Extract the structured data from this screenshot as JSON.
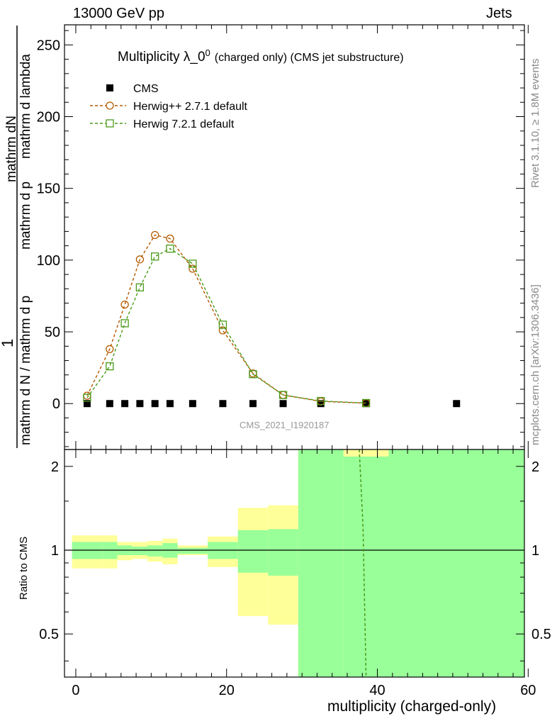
{
  "header": {
    "left_title": "13000 GeV pp",
    "right_title": "Jets"
  },
  "side": {
    "rivet": "Rivet 3.1.10, ≥ 1.8M events",
    "mcplots": "mcplots.cern.ch [arXiv:1306.3436]"
  },
  "chart_data": [
    {
      "type": "line",
      "panel": "main",
      "title": "Multiplicity λ_0",
      "title_sup": "0",
      "title_suffix": "(charged only) (CMS jet substructure)",
      "watermark": "CMS_2021_I1920187",
      "ylabel_top": "1",
      "ylabel_num": "mathrm dN",
      "ylabel_den_1": "mathrm d N / mathrm d p",
      "ylabel_den_2": "mathrm d p",
      "ylabel_den_3": "mathrm d lambda",
      "ylim": [
        -32,
        264
      ],
      "xlim": [
        -1.5,
        59.5
      ],
      "y_ticks": [
        0,
        50,
        100,
        150,
        200,
        250
      ],
      "y_tick_labels": [
        "0",
        "50",
        "100",
        "150",
        "200",
        "250"
      ],
      "legend_placement": "top-left",
      "series": [
        {
          "name": "CMS",
          "marker": "filled-square",
          "color": "#000000",
          "x": [
            1.5,
            4.5,
            6.5,
            8.5,
            10.5,
            12.5,
            15.5,
            19.5,
            23.5,
            27.5,
            32.5,
            38.5,
            50.5
          ],
          "y": [
            0,
            0,
            0,
            0,
            0,
            0,
            0,
            0,
            0,
            0,
            0,
            0,
            0
          ]
        },
        {
          "name": "Herwig++ 2.7.1 default",
          "marker": "open-circle",
          "color": "#b35a00",
          "x": [
            1.5,
            4.5,
            6.5,
            8.5,
            10.5,
            12.5,
            15.5,
            19.5,
            23.5,
            27.5,
            32.5,
            38.5
          ],
          "y": [
            5.5,
            38,
            69,
            100.5,
            117.5,
            115,
            94,
            51,
            21,
            6,
            1.5,
            0.3
          ]
        },
        {
          "name": "Herwig 7.2.1 default",
          "marker": "open-square",
          "color": "#4a9a1a",
          "x": [
            1.5,
            4.5,
            6.5,
            8.5,
            10.5,
            12.5,
            15.5,
            19.5,
            23.5,
            27.5,
            32.5,
            38.5
          ],
          "y": [
            4,
            26,
            56,
            81,
            102.5,
            108,
            97.5,
            55,
            20.5,
            6,
            1.8,
            0.4
          ]
        }
      ]
    },
    {
      "type": "area",
      "panel": "ratio",
      "ylabel": "Ratio to CMS",
      "ylim": [
        0.35,
        2.3
      ],
      "xlim": [
        -1.5,
        59.5
      ],
      "y_ticks": [
        0.5,
        1,
        2
      ],
      "y_tick_labels": [
        "0.5",
        "1",
        "2"
      ],
      "x_ticks": [
        0,
        20,
        40,
        60
      ],
      "x_tick_labels": [
        "0",
        "20",
        "40",
        "60"
      ],
      "xlabel": "multiplicity (charged-only)",
      "bands": [
        {
          "x0": -0.5,
          "x1": 3.5,
          "yellow": [
            0.86,
            1.13
          ],
          "green": [
            0.93,
            1.07
          ]
        },
        {
          "x0": 3.5,
          "x1": 5.5,
          "yellow": [
            0.86,
            1.13
          ],
          "green": [
            0.93,
            1.07
          ]
        },
        {
          "x0": 5.5,
          "x1": 7.5,
          "yellow": [
            0.92,
            1.07
          ],
          "green": [
            0.96,
            1.04
          ]
        },
        {
          "x0": 7.5,
          "x1": 9.5,
          "yellow": [
            0.93,
            1.07
          ],
          "green": [
            0.96,
            1.03
          ]
        },
        {
          "x0": 9.5,
          "x1": 11.5,
          "yellow": [
            0.91,
            1.08
          ],
          "green": [
            0.95,
            1.04
          ]
        },
        {
          "x0": 11.5,
          "x1": 13.5,
          "yellow": [
            0.89,
            1.1
          ],
          "green": [
            0.94,
            1.06
          ]
        },
        {
          "x0": 13.5,
          "x1": 17.5,
          "yellow": [
            0.96,
            1.04
          ],
          "green": [
            0.97,
            1.02
          ]
        },
        {
          "x0": 17.5,
          "x1": 21.5,
          "yellow": [
            0.87,
            1.12
          ],
          "green": [
            0.93,
            1.07
          ]
        },
        {
          "x0": 21.5,
          "x1": 25.5,
          "yellow": [
            0.58,
            1.42
          ],
          "green": [
            0.83,
            1.18
          ]
        },
        {
          "x0": 25.5,
          "x1": 29.5,
          "yellow": [
            0.54,
            1.45
          ],
          "green": [
            0.81,
            1.19
          ]
        },
        {
          "x0": 29.5,
          "x1": 35.5,
          "yellow": [
            0.35,
            2.3
          ],
          "green": [
            0.35,
            2.3
          ]
        },
        {
          "x0": 35.5,
          "x1": 41.5,
          "yellow": [
            0.35,
            2.3
          ],
          "green": [
            0.35,
            2.17
          ]
        },
        {
          "x0": 41.5,
          "x1": 59.5,
          "yellow": [
            0.35,
            2.3
          ],
          "green": [
            0.35,
            2.3
          ]
        }
      ],
      "ratio_line": {
        "name": "Herwig 7.2.1 default",
        "color": "#4a9a1a",
        "x": [
          37.6,
          38.1,
          38.5
        ],
        "y": [
          2.3,
          1.2,
          0.35
        ]
      },
      "colors": {
        "yellow": "#ffff99",
        "green": "#99ff99"
      }
    }
  ]
}
